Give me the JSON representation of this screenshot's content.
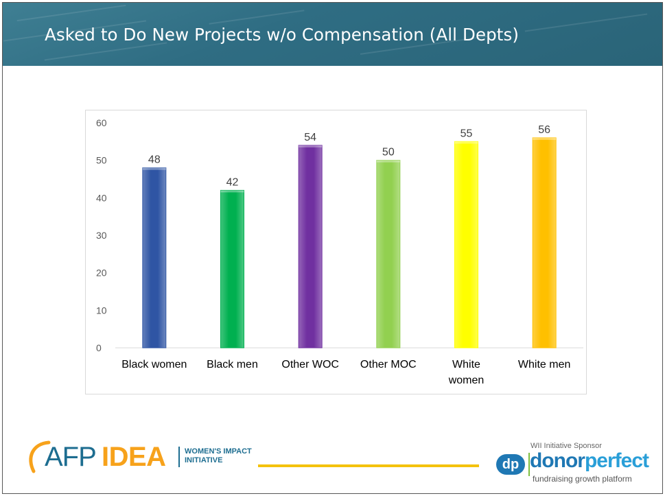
{
  "slide": {
    "title": "Asked to Do New Projects w/o Compensation (All Depts)"
  },
  "chart_data": {
    "type": "bar",
    "title": "",
    "xlabel": "",
    "ylabel": "",
    "categories": [
      "Black women",
      "Black men",
      "Other WOC",
      "Other MOC",
      "White women",
      "White men"
    ],
    "category_lines": [
      [
        "Black women"
      ],
      [
        "Black men"
      ],
      [
        "Other WOC"
      ],
      [
        "Other MOC"
      ],
      [
        "White",
        "women"
      ],
      [
        "White men"
      ]
    ],
    "values": [
      48,
      42,
      54,
      50,
      55,
      56
    ],
    "data_labels": [
      "48",
      "42",
      "54",
      "50",
      "55",
      "56"
    ],
    "bar_colors": [
      "#2f55a4",
      "#00b050",
      "#7030a0",
      "#92d050",
      "#ffff00",
      "#ffc000"
    ],
    "ylim": [
      0,
      60
    ],
    "yticks": [
      0,
      10,
      20,
      30,
      40,
      50,
      60
    ],
    "grid": false,
    "legend": "none"
  },
  "footer": {
    "afp_logo": {
      "afp": "AFP",
      "idea": "IDEA",
      "initiative_line1": "WOMEN'S IMPACT",
      "initiative_line2": "INITIATIVE"
    },
    "sponsor": {
      "label": "WII Initiative Sponsor",
      "badge": "dp",
      "name_part1": "donor",
      "name_part2": "perfect",
      "tagline": "fundraising growth platform"
    },
    "accent_color": "#f4c20d"
  }
}
